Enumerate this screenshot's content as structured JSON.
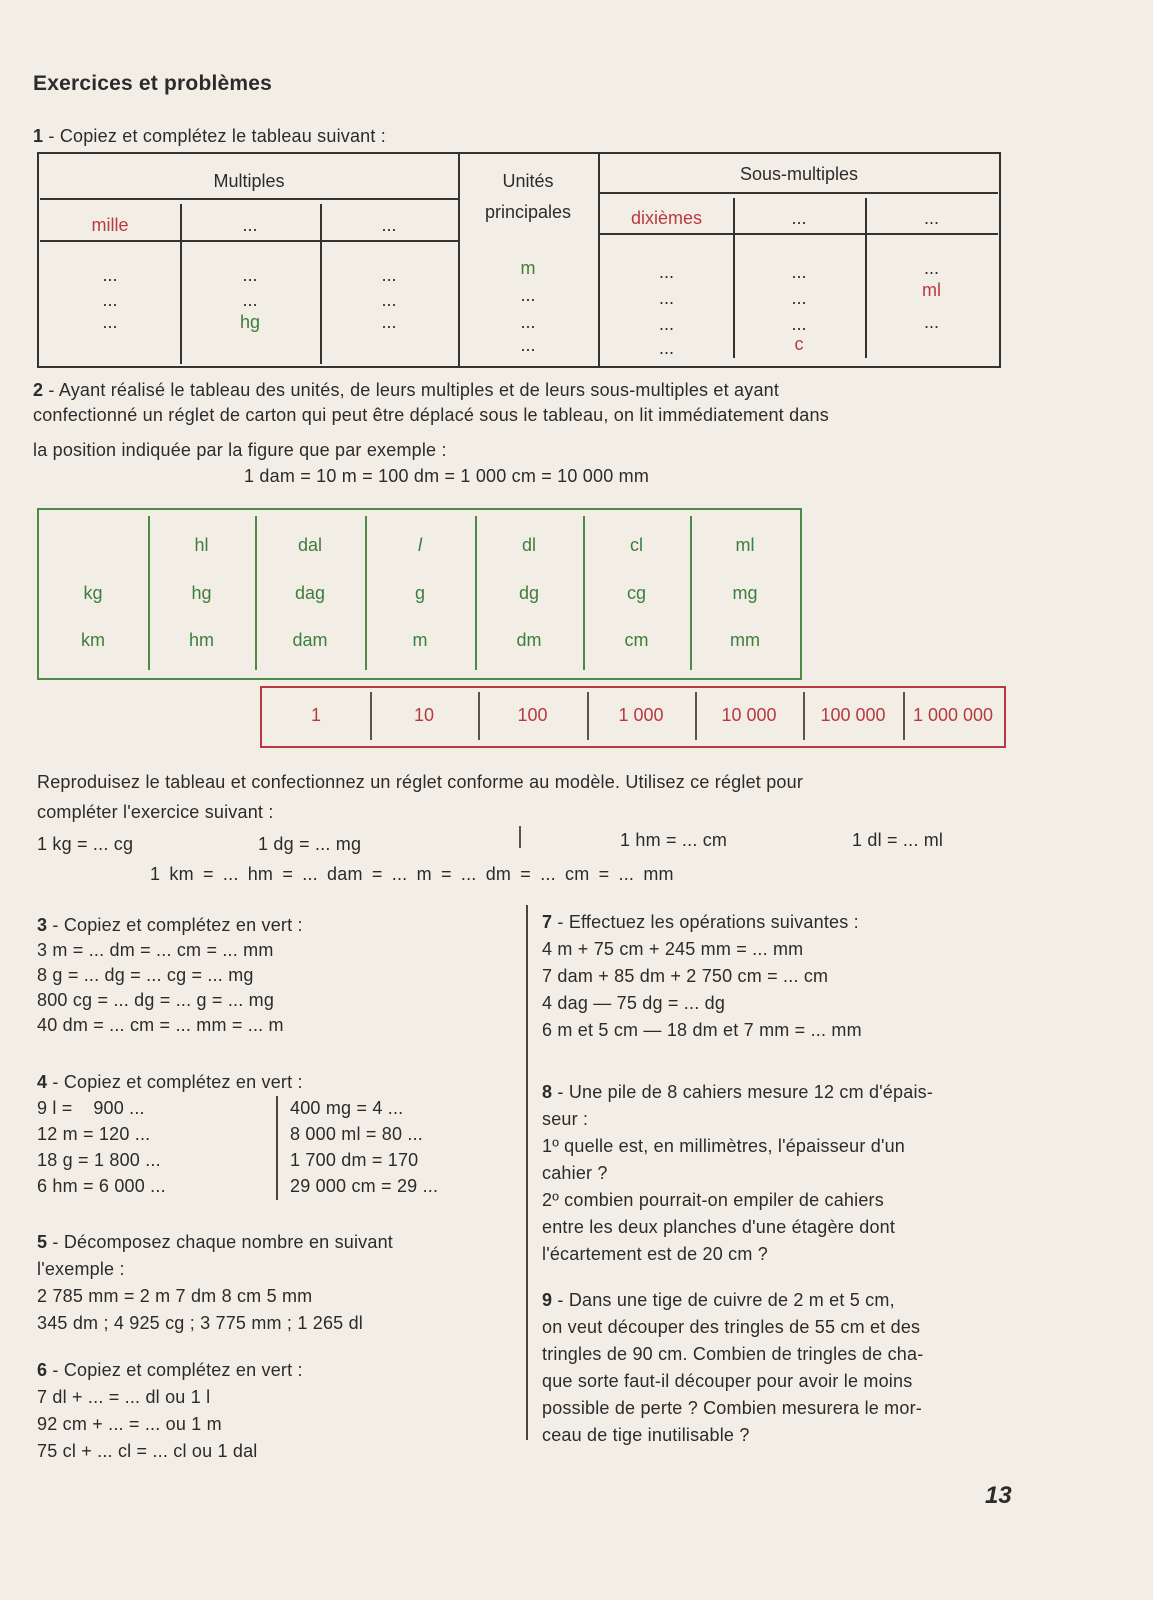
{
  "heading": "Exercices et problèmes",
  "ex1": {
    "num": "1",
    "text": "- Copiez et complétez le tableau suivant :",
    "table": {
      "multiples": "Multiples",
      "unites": "Unités",
      "principales": "principales",
      "sous_multiples": "Sous-multiples",
      "subheaders": [
        "mille",
        "...",
        "...",
        "dixièmes",
        "...",
        "..."
      ],
      "columns": [
        [
          "...",
          "...",
          "..."
        ],
        [
          "...",
          "...",
          "hg"
        ],
        [
          "...",
          "...",
          "..."
        ],
        [
          "m",
          "...",
          "...",
          "..."
        ],
        [
          "...",
          "...",
          "...",
          "..."
        ],
        [
          "...",
          "...",
          "...",
          "c"
        ],
        [
          "...",
          "ml",
          "..."
        ]
      ]
    }
  },
  "ex2": {
    "num": "2",
    "lines": [
      "- Ayant réalisé le tableau des unités, de leurs multiples et de leurs sous-multiples et ayant",
      "confectionné un réglet de carton qui peut être déplacé sous le tableau, on lit immédiatement dans",
      "la position indiquée par la figure que par exemple :"
    ],
    "example": "1 dam = 10 m = 100 dm = 1 000 cm = 10 000 mm",
    "units_table": [
      [
        "",
        "hl",
        "dal",
        "l",
        "dl",
        "cl",
        "ml"
      ],
      [
        "kg",
        "hg",
        "dag",
        "g",
        "dg",
        "cg",
        "mg"
      ],
      [
        "km",
        "hm",
        "dam",
        "m",
        "dm",
        "cm",
        "mm"
      ]
    ],
    "ruler": [
      "1",
      "10",
      "100",
      "1 000",
      "10 000",
      "100 000",
      "1 000 000"
    ],
    "instr": [
      "Reproduisez le tableau et confectionnez un réglet conforme au modèle. Utilisez ce réglet pour",
      "compléter l'exercice suivant :"
    ],
    "items": [
      "1 kg = ... cg",
      "1 dg = ... mg",
      "1 hm = ... cm",
      "1 dl = ... ml"
    ],
    "long": "1 km = ... hm = ... dam = ... m = ... dm = ... cm = ... mm"
  },
  "ex3": {
    "num": "3",
    "title": "- Copiez et complétez en vert :",
    "lines": [
      "3 m = ... dm = ... cm = ... mm",
      "8 g = ... dg = ... cg = ... mg",
      "800 cg = ... dg = ... g = ... mg",
      "40 dm = ... cm = ... mm = ... m"
    ]
  },
  "ex4": {
    "num": "4",
    "title": "- Copiez et complétez en vert :",
    "left": [
      "9 l =    900 ...",
      "12 m = 120 ...",
      "18 g = 1 800 ...",
      "6 hm = 6 000 ..."
    ],
    "right": [
      "400 mg = 4 ...",
      "8 000 ml = 80 ...",
      "1 700 dm = 170",
      "29 000 cm = 29 ..."
    ]
  },
  "ex5": {
    "num": "5",
    "lines": [
      "- Décomposez chaque nombre en suivant",
      "l'exemple :",
      "2 785 mm = 2 m 7 dm 8 cm 5 mm",
      "345 dm ; 4 925 cg ; 3 775 mm ; 1 265 dl"
    ]
  },
  "ex6": {
    "num": "6",
    "title": "- Copiez et complétez en vert :",
    "lines": [
      "7 dl + ... = ... dl ou 1 l",
      "92 cm + ... = ... ou 1 m",
      "75 cl + ... cl = ... cl ou 1 dal"
    ]
  },
  "ex7": {
    "num": "7",
    "title": "- Effectuez les opérations suivantes :",
    "lines": [
      "4 m + 75 cm + 245 mm = ... mm",
      "7 dam + 85 dm + 2 750 cm = ... cm",
      "4 dag — 75 dg = ... dg",
      "6 m et 5 cm — 18 dm et 7 mm = ... mm"
    ]
  },
  "ex8": {
    "num": "8",
    "lines": [
      "- Une pile de 8 cahiers mesure 12 cm d'épais-",
      "seur :",
      "1º quelle est, en millimètres, l'épaisseur d'un",
      "cahier ?",
      "2º combien pourrait-on empiler de cahiers",
      "entre les deux planches d'une étagère dont",
      "l'écartement est de 20 cm ?"
    ]
  },
  "ex9": {
    "num": "9",
    "lines": [
      "- Dans une tige de cuivre de 2 m et 5 cm,",
      "on veut découper des tringles de 55 cm et des",
      "tringles de 90 cm. Combien de tringles de cha-",
      "que sorte faut-il découper pour avoir le moins",
      "possible de perte ? Combien mesurera le mor-",
      "ceau de tige inutilisable ?"
    ]
  },
  "page_number": "13",
  "colors": {
    "red": "#b73a3f",
    "green": "#3f7d3c",
    "text": "#2b2b2b",
    "paper": "#f2eee6"
  }
}
